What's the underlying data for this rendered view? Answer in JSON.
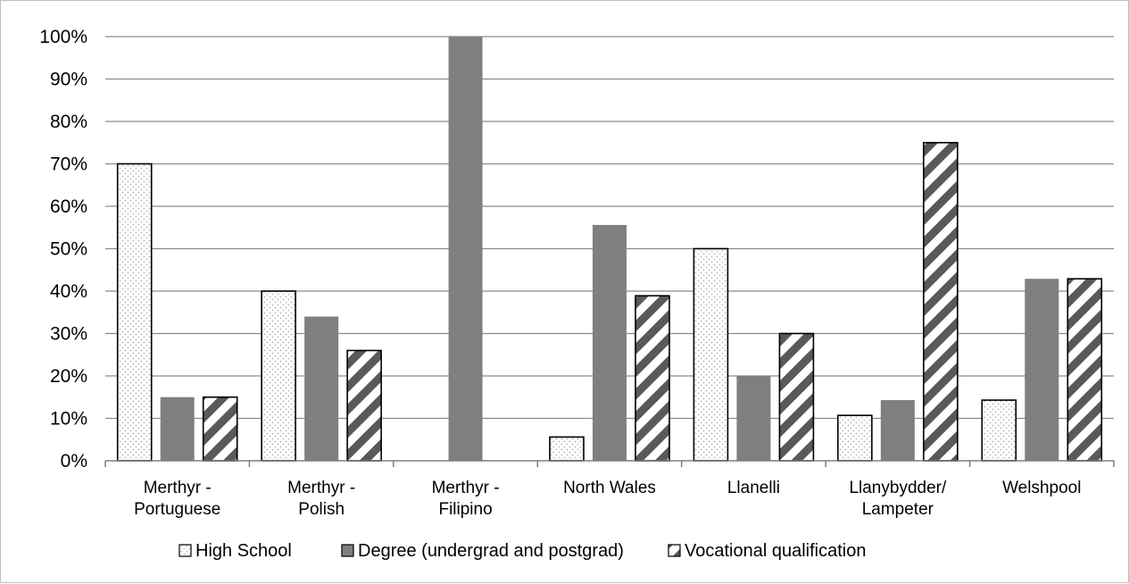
{
  "chart_data": {
    "type": "bar",
    "categories": [
      [
        "Merthyr -",
        "Portuguese"
      ],
      [
        "Merthyr -",
        "Polish"
      ],
      [
        "Merthyr -",
        "Filipino"
      ],
      [
        "North Wales"
      ],
      [
        "Llanelli"
      ],
      [
        "Llanybydder/",
        "Lampeter"
      ],
      [
        "Welshpool"
      ]
    ],
    "series": [
      {
        "name": "High School",
        "pattern": "dots",
        "values": [
          70,
          40,
          0,
          5.6,
          50,
          10.7,
          14.3
        ]
      },
      {
        "name": "Degree (undergrad and postgrad)",
        "pattern": "solid",
        "values": [
          15,
          34,
          100,
          55.6,
          20,
          14.3,
          42.9
        ]
      },
      {
        "name": "Vocational qualification",
        "pattern": "diagonal",
        "values": [
          15,
          26,
          0,
          38.9,
          30,
          75,
          42.9
        ]
      }
    ],
    "ylim": [
      0,
      100
    ],
    "yticks": [
      "0%",
      "10%",
      "20%",
      "30%",
      "40%",
      "50%",
      "60%",
      "70%",
      "80%",
      "90%",
      "100%"
    ],
    "grid": true,
    "legend_position": "bottom",
    "colors": {
      "solid": "#7f7f7f",
      "dots": "#bfbfbf",
      "stripe": "#595959",
      "grid": "#8c8c8c",
      "axis": "#7f7f7f"
    }
  }
}
